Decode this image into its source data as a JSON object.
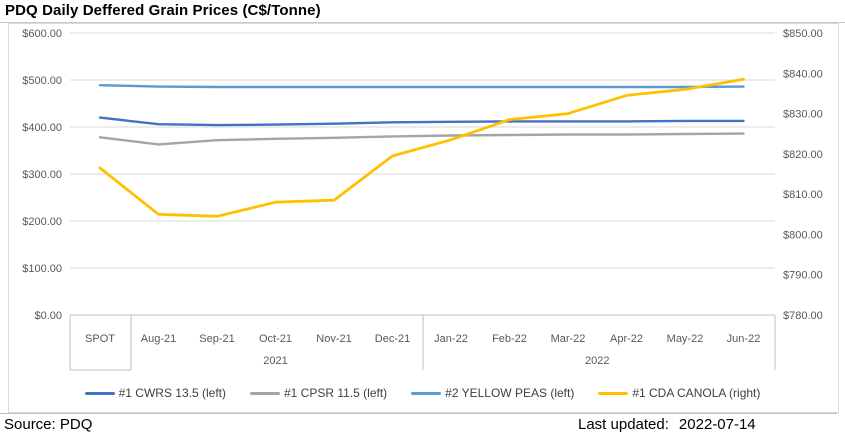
{
  "title": "PDQ Daily Deffered Grain Prices (C$/Tonne)",
  "footer": {
    "source": "Source: PDQ",
    "last_updated_label": "Last updated:",
    "last_updated_value": "2022-07-14"
  },
  "colors": {
    "cwrs": "#4472C4",
    "cpsr": "#A5A5A5",
    "yellow_peas": "#5B9BD5",
    "canola": "#FFC000",
    "gridline": "#D9D9D9",
    "axis_line": "#BFBFBF",
    "tick_text": "#595959"
  },
  "chart_data": {
    "type": "line",
    "title": "PDQ Daily Deffered Grain Prices (C$/Tonne)",
    "categories": [
      "SPOT",
      "Aug-21",
      "Sep-21",
      "Oct-21",
      "Nov-21",
      "Dec-21",
      "Jan-22",
      "Feb-22",
      "Mar-22",
      "Apr-22",
      "May-22",
      "Jun-22"
    ],
    "category_groups": [
      {
        "label": "",
        "start": 0,
        "count": 1
      },
      {
        "label": "2021",
        "start": 1,
        "count": 5
      },
      {
        "label": "2022",
        "start": 6,
        "count": 6
      }
    ],
    "series": [
      {
        "name": "#1 CWRS 13.5 (left)",
        "axis": "left",
        "color": "#4472C4",
        "values": [
          420,
          406,
          404,
          405,
          407,
          410,
          411,
          412,
          412,
          412,
          413,
          413
        ]
      },
      {
        "name": "#1 CPSR 11.5 (left)",
        "axis": "left",
        "color": "#A5A5A5",
        "values": [
          378,
          363,
          372,
          375,
          377,
          380,
          382,
          383,
          384,
          384,
          385,
          386
        ]
      },
      {
        "name": "#2 YELLOW PEAS (left)",
        "axis": "left",
        "color": "#5B9BD5",
        "values": [
          489,
          486,
          485,
          485,
          485,
          485,
          485,
          485,
          485,
          485,
          485,
          486
        ]
      },
      {
        "name": "#1 CDA CANOLA (right)",
        "axis": "right",
        "color": "#FFC000",
        "values": [
          816.5,
          805,
          804.5,
          808,
          808.5,
          819.5,
          823.5,
          828.5,
          830,
          834.5,
          836,
          838.5
        ]
      }
    ],
    "left_axis": {
      "min": 0,
      "max": 600,
      "step": 100,
      "tick_labels": [
        "$600.00",
        "$500.00",
        "$400.00",
        "$300.00",
        "$200.00",
        "$100.00",
        "$0.00"
      ]
    },
    "right_axis": {
      "min": 780,
      "max": 850,
      "step": 10,
      "tick_labels": [
        "$850.00",
        "$840.00",
        "$830.00",
        "$820.00",
        "$810.00",
        "$800.00",
        "$790.00",
        "$780.00"
      ]
    },
    "grid": true,
    "legend_position": "bottom"
  }
}
